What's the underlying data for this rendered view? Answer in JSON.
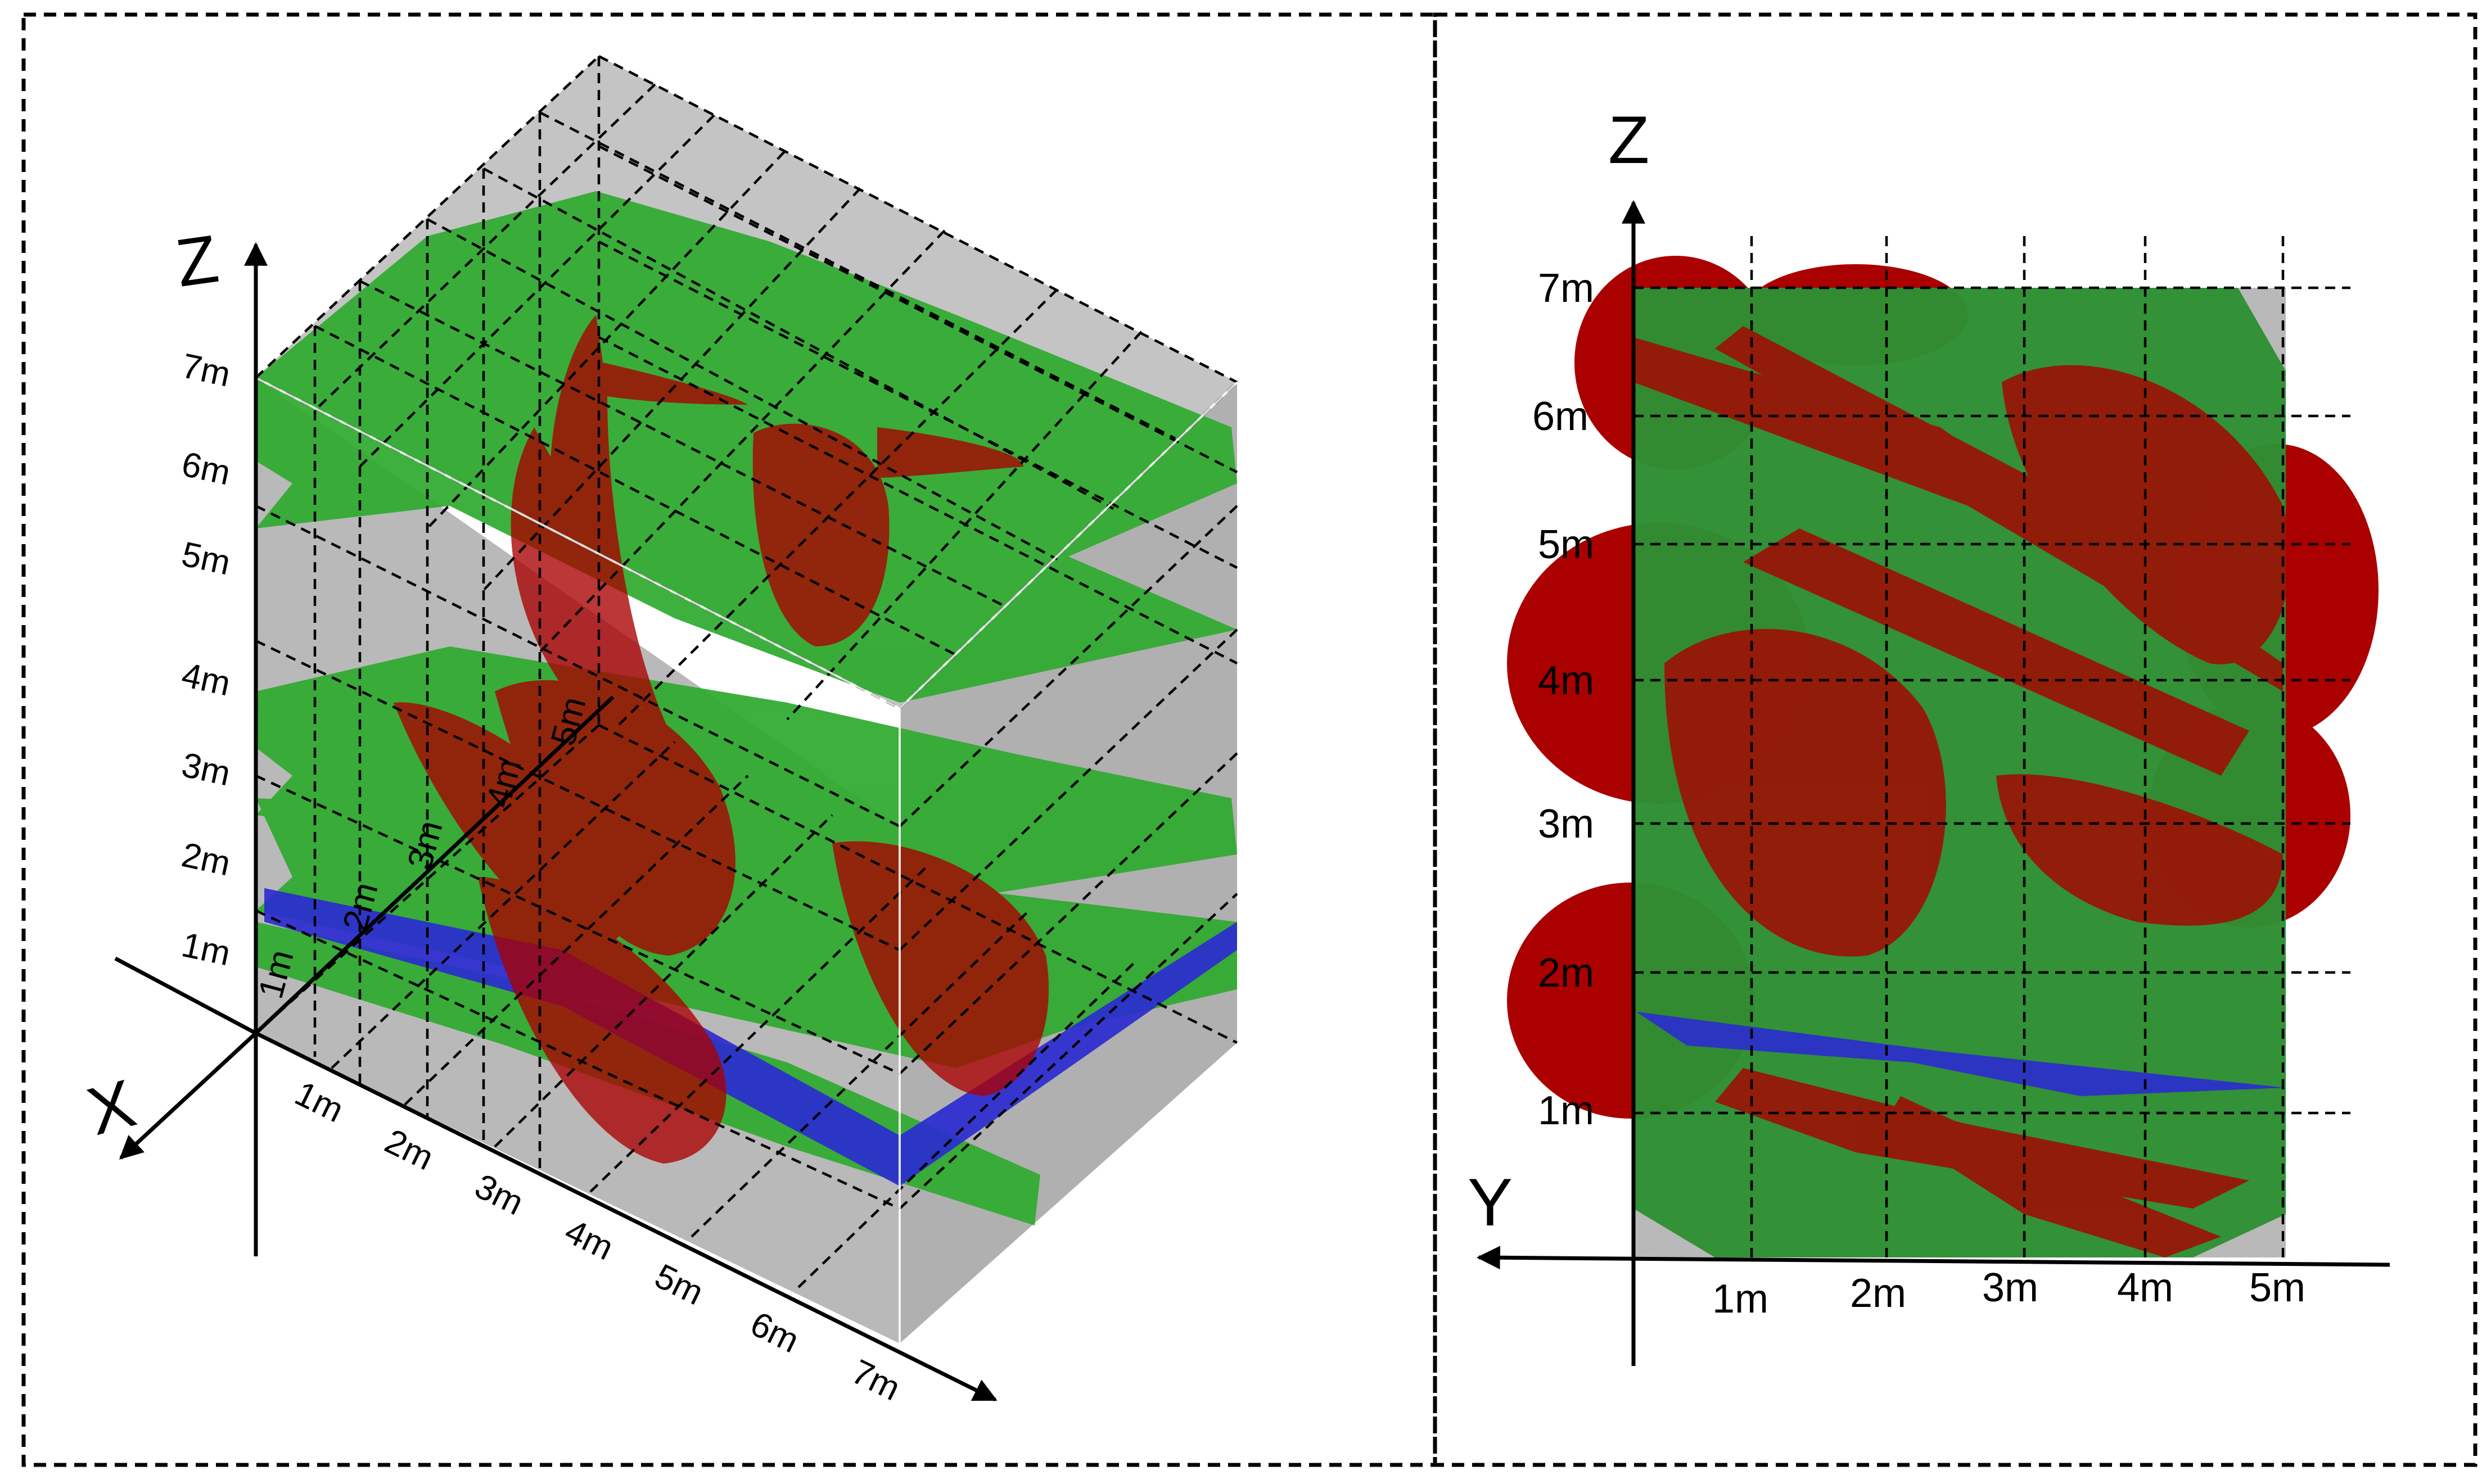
{
  "colors": {
    "block": "#b9b9b9",
    "layer": "#2faa2f",
    "layer_dark": "#2e8f33",
    "fracture": "#aa0000",
    "water_table": "#2b2bd0",
    "grid": "#000000"
  },
  "left_panel": {
    "axes": {
      "z": "Z",
      "x": "X"
    },
    "z_ticks": [
      "1m",
      "2m",
      "3m",
      "4m",
      "5m",
      "6m",
      "7m"
    ],
    "x_ticks": [
      "1m",
      "2m",
      "3m",
      "4m",
      "5m"
    ],
    "y_ticks": [
      "1m",
      "2m",
      "3m",
      "4m",
      "5m",
      "6m",
      "7m"
    ]
  },
  "right_panel": {
    "axes": {
      "z": "Z",
      "y": "Y"
    },
    "z_ticks": [
      "1m",
      "2m",
      "3m",
      "4m",
      "5m",
      "6m",
      "7m"
    ],
    "y_ticks": [
      "1m",
      "2m",
      "3m",
      "4m",
      "5m"
    ]
  }
}
